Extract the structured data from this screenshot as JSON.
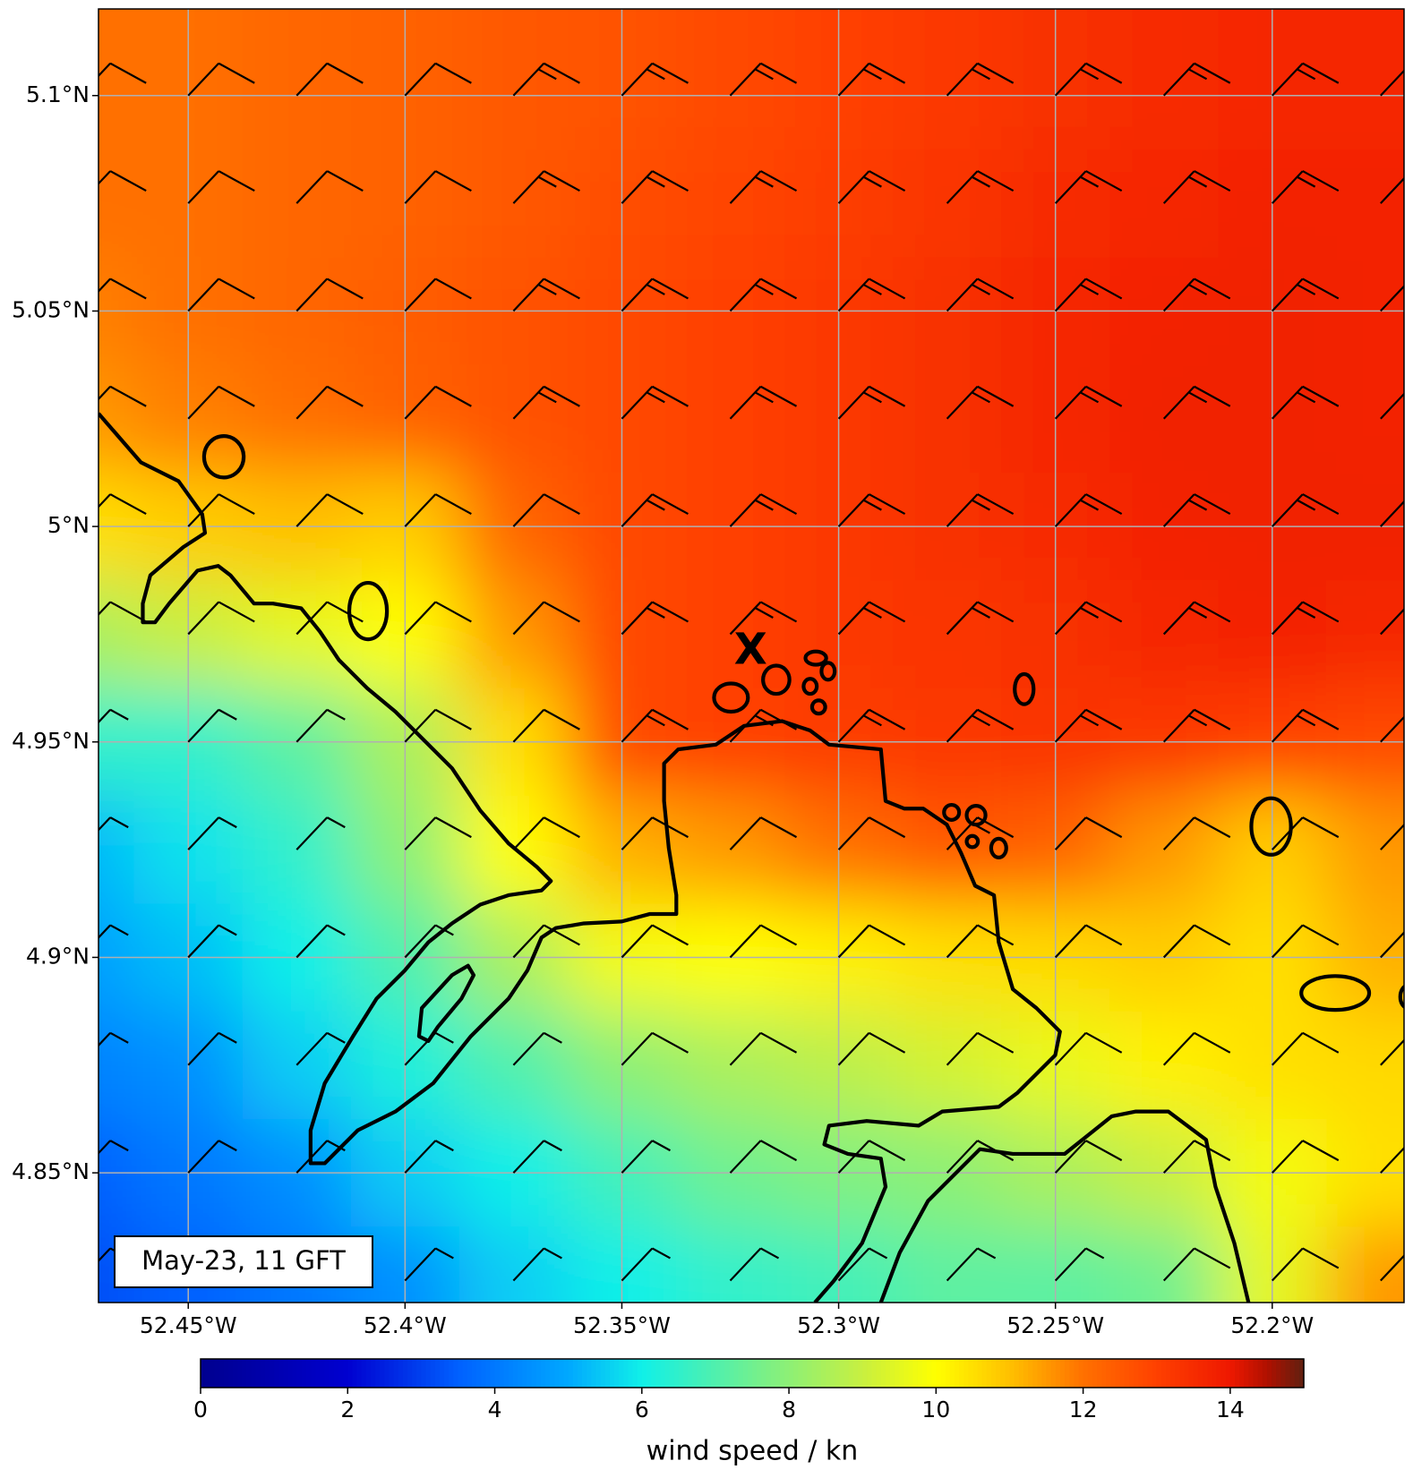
{
  "chart_data": {
    "type": "wind-map",
    "xlim": [
      -52.4707,
      -52.1696
    ],
    "ylim": [
      4.8199,
      5.1201
    ],
    "xticks": [
      {
        "value": -52.45,
        "label": "52.45°W"
      },
      {
        "value": -52.4,
        "label": "52.4°W"
      },
      {
        "value": -52.35,
        "label": "52.35°W"
      },
      {
        "value": -52.3,
        "label": "52.3°W"
      },
      {
        "value": -52.25,
        "label": "52.25°W"
      },
      {
        "value": -52.2,
        "label": "52.2°W"
      }
    ],
    "yticks": [
      {
        "value": 5.1,
        "label": "5.1°N"
      },
      {
        "value": 5.05,
        "label": "5.05°N"
      },
      {
        "value": 5.0,
        "label": "5°N"
      },
      {
        "value": 4.95,
        "label": "4.95°N"
      },
      {
        "value": 4.9,
        "label": "4.9°N"
      },
      {
        "value": 4.85,
        "label": "4.85°N"
      }
    ],
    "grid": true,
    "lon": [
      -52.475,
      -52.45,
      -52.425,
      -52.4,
      -52.375,
      -52.35,
      -52.325,
      -52.3,
      -52.275,
      -52.25,
      -52.225,
      -52.2,
      -52.175
    ],
    "lat": [
      5.1,
      5.075,
      5.05,
      5.025,
      5.0,
      4.975,
      4.95,
      4.925,
      4.9,
      4.875,
      4.85,
      4.825
    ],
    "speed": [
      [
        12,
        12,
        12.2,
        12.3,
        12.5,
        12.6,
        12.8,
        13,
        13.2,
        13.4,
        13.5,
        13.6,
        13.6
      ],
      [
        12,
        12,
        12.2,
        12.3,
        12.5,
        12.7,
        12.9,
        13.1,
        13.3,
        13.5,
        13.6,
        13.7,
        13.7
      ],
      [
        11.8,
        12,
        12.2,
        12.4,
        12.6,
        12.8,
        13,
        13.2,
        13.4,
        13.6,
        13.7,
        13.8,
        13.7
      ],
      [
        11.5,
        11.8,
        12,
        12.3,
        12.6,
        12.8,
        13,
        13.2,
        13.4,
        13.6,
        13.8,
        13.8,
        13.7
      ],
      [
        10.5,
        10.8,
        11,
        10.8,
        12.2,
        12.8,
        13,
        13.2,
        13.4,
        13.5,
        13.7,
        13.8,
        13.8
      ],
      [
        8.5,
        9,
        9.5,
        10,
        11.5,
        12.8,
        13,
        13.2,
        13.3,
        13.4,
        13.6,
        13.7,
        13.6
      ],
      [
        6.5,
        6.5,
        7.2,
        8.5,
        10.5,
        12.8,
        13,
        13.1,
        13.2,
        13.3,
        13.2,
        13,
        12.8
      ],
      [
        5.2,
        5.8,
        6.5,
        8,
        10,
        11.2,
        11.5,
        12,
        12.5,
        12.3,
        11.5,
        10.8,
        11.5
      ],
      [
        4.8,
        5.3,
        6,
        7,
        8.5,
        9.8,
        10,
        10.2,
        10.5,
        10.6,
        10.8,
        10.5,
        11.2
      ],
      [
        4.2,
        4.5,
        5.5,
        6.2,
        7,
        8,
        8.5,
        8.8,
        9.2,
        9.6,
        10.2,
        10.5,
        10.6
      ],
      [
        3.5,
        4,
        4.5,
        5.5,
        6,
        6.8,
        7.5,
        7.8,
        8,
        8.5,
        9,
        9.8,
        10.5
      ],
      [
        3.2,
        3.5,
        4,
        4.5,
        5.5,
        6,
        6.5,
        6.8,
        7.2,
        7.2,
        7.5,
        9.5,
        11.5
      ]
    ],
    "marker": {
      "label": "X",
      "lon": -52.3203,
      "lat": 4.9708
    },
    "annotation": "May-23, 11 GFT",
    "colorbar": {
      "label": "wind speed / kn",
      "lim": [
        0,
        15
      ],
      "ticks": [
        0,
        2,
        4,
        6,
        8,
        10,
        12,
        14
      ]
    }
  }
}
